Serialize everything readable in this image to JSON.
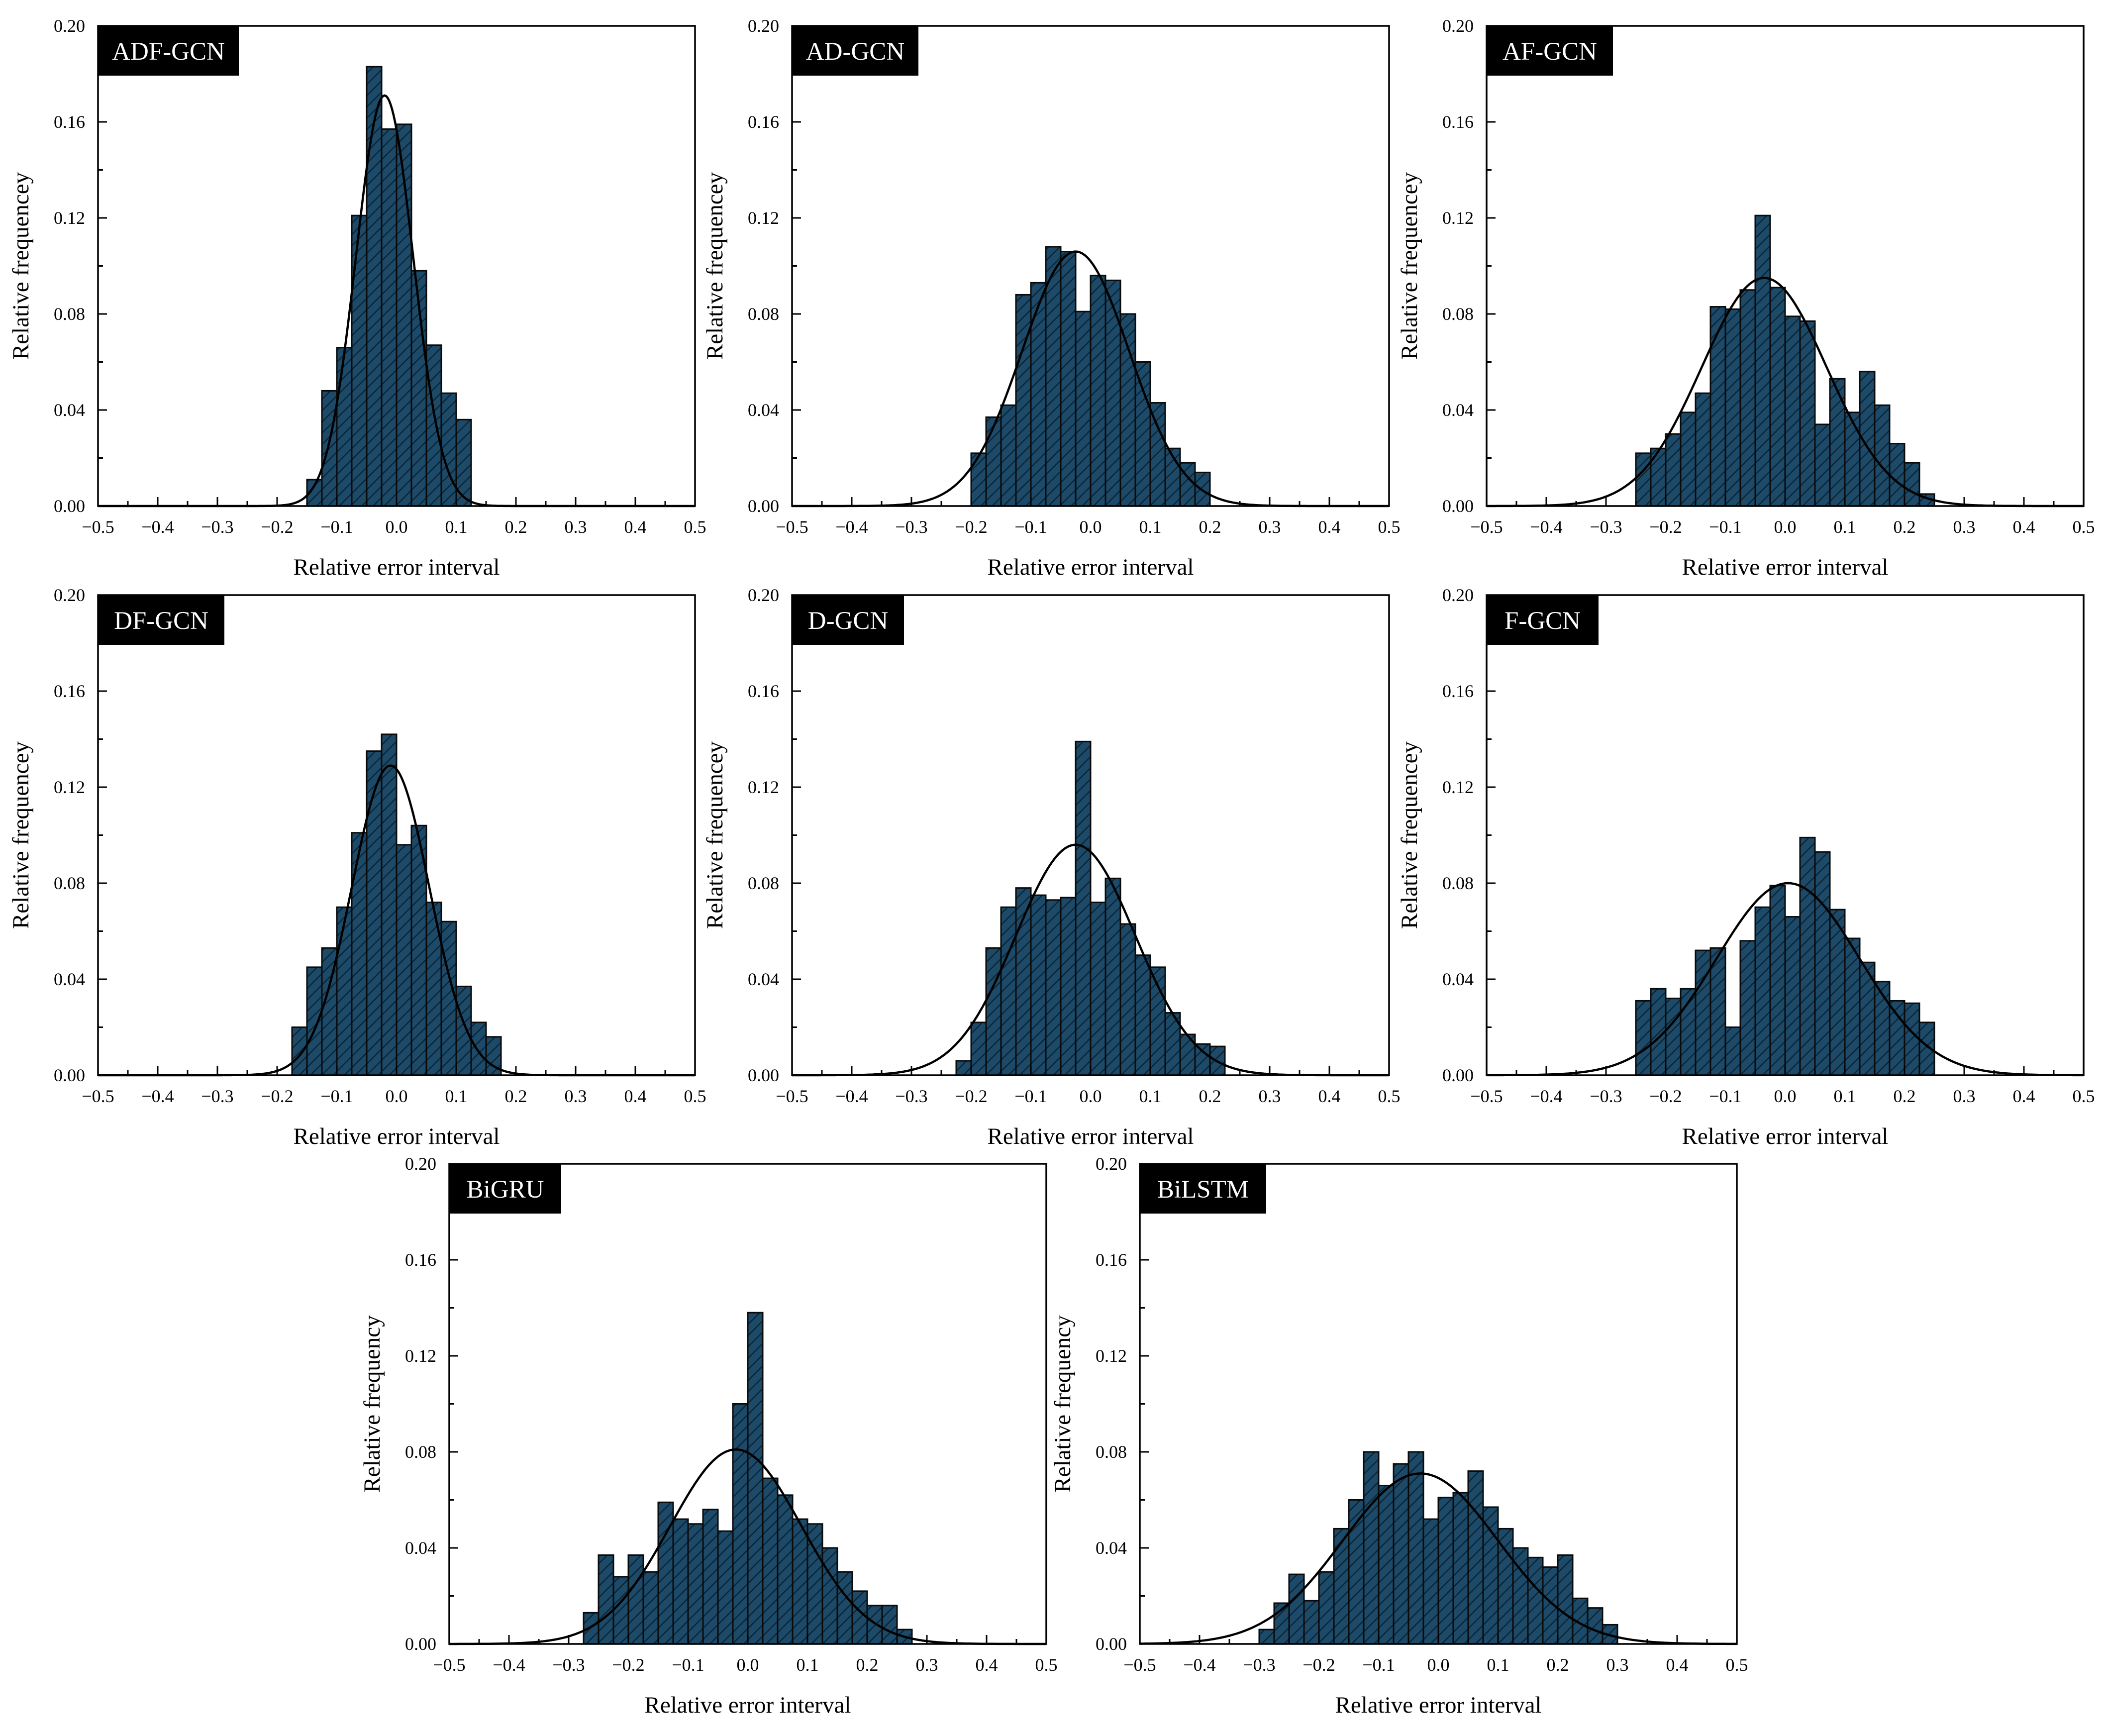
{
  "figure": {
    "bar_color": "#1c4a68",
    "bar_stroke": "#0a0a0a",
    "hatch_color": "#0b2536",
    "curve_color": "#000000",
    "badge_color": "#000000"
  },
  "chart_data": [
    {
      "type": "bar",
      "panel_label": "ADF-GCN",
      "xlabel": "Relative error interval",
      "ylabel": "Relative frequencey",
      "xlim": [
        -0.5,
        0.5
      ],
      "ylim": [
        0,
        0.2
      ],
      "xticks": [
        "−0.5",
        "−0.4",
        "−0.3",
        "−0.2",
        "−0.1",
        "0.0",
        "0.1",
        "0.2",
        "0.3",
        "0.4",
        "0.5"
      ],
      "yticks": [
        "0.00",
        "0.04",
        "0.08",
        "0.12",
        "0.16",
        "0.20"
      ],
      "bin_width": 0.025,
      "bins_start": [
        -0.15,
        -0.125,
        -0.1,
        -0.075,
        -0.05,
        -0.025,
        0.0,
        0.025,
        0.05,
        0.075,
        0.1
      ],
      "values": [
        0.011,
        0.048,
        0.066,
        0.121,
        0.183,
        0.157,
        0.159,
        0.098,
        0.067,
        0.047,
        0.036
      ],
      "fit_curve": {
        "type": "normal",
        "mean": -0.02,
        "std": 0.048,
        "peak": 0.171
      }
    },
    {
      "type": "bar",
      "panel_label": "AD-GCN",
      "xlabel": "Relative error interval",
      "ylabel": "Relative frequencey",
      "xlim": [
        -0.5,
        0.5
      ],
      "ylim": [
        0,
        0.2
      ],
      "xticks": [
        "−0.5",
        "−0.4",
        "−0.3",
        "−0.2",
        "−0.1",
        "0.0",
        "0.1",
        "0.2",
        "0.3",
        "0.4",
        "0.5"
      ],
      "yticks": [
        "0.00",
        "0.04",
        "0.08",
        "0.12",
        "0.16",
        "0.20"
      ],
      "bin_width": 0.025,
      "bins_start": [
        -0.2,
        -0.175,
        -0.15,
        -0.125,
        -0.1,
        -0.075,
        -0.05,
        -0.025,
        0.0,
        0.025,
        0.05,
        0.075,
        0.1,
        0.125,
        0.15,
        0.175
      ],
      "values": [
        0.022,
        0.037,
        0.042,
        0.088,
        0.093,
        0.108,
        0.106,
        0.081,
        0.096,
        0.094,
        0.08,
        0.06,
        0.043,
        0.024,
        0.018,
        0.014
      ],
      "fit_curve": {
        "type": "normal",
        "mean": -0.025,
        "std": 0.09,
        "peak": 0.106
      }
    },
    {
      "type": "bar",
      "panel_label": "AF-GCN",
      "xlabel": "Relative error interval",
      "ylabel": "Relative frequencey",
      "xlim": [
        -0.5,
        0.5
      ],
      "ylim": [
        0,
        0.2
      ],
      "xticks": [
        "−0.5",
        "−0.4",
        "−0.3",
        "−0.2",
        "−0.1",
        "0.0",
        "0.1",
        "0.2",
        "0.3",
        "0.4",
        "0.5"
      ],
      "yticks": [
        "0.00",
        "0.04",
        "0.08",
        "0.12",
        "0.16",
        "0.20"
      ],
      "bin_width": 0.025,
      "bins_start": [
        -0.25,
        -0.225,
        -0.2,
        -0.175,
        -0.15,
        -0.125,
        -0.1,
        -0.075,
        -0.05,
        -0.025,
        0.0,
        0.025,
        0.05,
        0.075,
        0.1,
        0.125,
        0.15,
        0.175,
        0.2,
        0.225
      ],
      "values": [
        0.022,
        0.024,
        0.03,
        0.039,
        0.047,
        0.083,
        0.082,
        0.09,
        0.121,
        0.091,
        0.079,
        0.077,
        0.034,
        0.053,
        0.039,
        0.056,
        0.042,
        0.026,
        0.018,
        0.005
      ],
      "fit_curve": {
        "type": "normal",
        "mean": -0.035,
        "std": 0.105,
        "peak": 0.095
      }
    },
    {
      "type": "bar",
      "panel_label": "DF-GCN",
      "xlabel": "Relative error interval",
      "ylabel": "Relative frequencey",
      "xlim": [
        -0.5,
        0.5
      ],
      "ylim": [
        0,
        0.2
      ],
      "xticks": [
        "−0.5",
        "−0.4",
        "−0.3",
        "−0.2",
        "−0.1",
        "0.0",
        "0.1",
        "0.2",
        "0.3",
        "0.4",
        "0.5"
      ],
      "yticks": [
        "0.00",
        "0.04",
        "0.08",
        "0.12",
        "0.16",
        "0.20"
      ],
      "bin_width": 0.025,
      "bins_start": [
        -0.175,
        -0.15,
        -0.125,
        -0.1,
        -0.075,
        -0.05,
        -0.025,
        0.0,
        0.025,
        0.05,
        0.075,
        0.1,
        0.125,
        0.15
      ],
      "values": [
        0.02,
        0.045,
        0.053,
        0.07,
        0.101,
        0.135,
        0.142,
        0.096,
        0.104,
        0.072,
        0.064,
        0.037,
        0.022,
        0.016
      ],
      "fit_curve": {
        "type": "normal",
        "mean": -0.01,
        "std": 0.065,
        "peak": 0.129
      }
    },
    {
      "type": "bar",
      "panel_label": "D-GCN",
      "xlabel": "Relative error interval",
      "ylabel": "Relative frequencey",
      "xlim": [
        -0.5,
        0.5
      ],
      "ylim": [
        0,
        0.2
      ],
      "xticks": [
        "−0.5",
        "−0.4",
        "−0.3",
        "−0.2",
        "−0.1",
        "0.0",
        "0.1",
        "0.2",
        "0.3",
        "0.4",
        "0.5"
      ],
      "yticks": [
        "0.00",
        "0.04",
        "0.08",
        "0.12",
        "0.16",
        "0.20"
      ],
      "bin_width": 0.025,
      "bins_start": [
        -0.225,
        -0.2,
        -0.175,
        -0.15,
        -0.125,
        -0.1,
        -0.075,
        -0.05,
        -0.025,
        0.0,
        0.025,
        0.05,
        0.075,
        0.1,
        0.125,
        0.15,
        0.175,
        0.2
      ],
      "values": [
        0.006,
        0.022,
        0.053,
        0.07,
        0.078,
        0.075,
        0.073,
        0.074,
        0.139,
        0.072,
        0.082,
        0.063,
        0.05,
        0.045,
        0.026,
        0.017,
        0.013,
        0.012
      ],
      "fit_curve": {
        "type": "normal",
        "mean": -0.025,
        "std": 0.1,
        "peak": 0.096
      }
    },
    {
      "type": "bar",
      "panel_label": "F-GCN",
      "xlabel": "Relative error interval",
      "ylabel": "Relative frequencey",
      "xlim": [
        -0.5,
        0.5
      ],
      "ylim": [
        0,
        0.2
      ],
      "xticks": [
        "−0.5",
        "−0.4",
        "−0.3",
        "−0.2",
        "−0.1",
        "0.0",
        "0.1",
        "0.2",
        "0.3",
        "0.4",
        "0.5"
      ],
      "yticks": [
        "0.00",
        "0.04",
        "0.08",
        "0.12",
        "0.16",
        "0.20"
      ],
      "bin_width": 0.025,
      "bins_start": [
        -0.25,
        -0.225,
        -0.2,
        -0.175,
        -0.15,
        -0.125,
        -0.1,
        -0.075,
        -0.05,
        -0.025,
        0.0,
        0.025,
        0.05,
        0.075,
        0.1,
        0.125,
        0.15,
        0.175,
        0.2,
        0.225
      ],
      "values": [
        0.031,
        0.036,
        0.032,
        0.036,
        0.052,
        0.053,
        0.02,
        0.056,
        0.07,
        0.079,
        0.066,
        0.099,
        0.093,
        0.069,
        0.057,
        0.047,
        0.039,
        0.031,
        0.03,
        0.022
      ],
      "fit_curve": {
        "type": "normal",
        "mean": 0.005,
        "std": 0.12,
        "peak": 0.08
      }
    },
    {
      "type": "bar",
      "panel_label": "BiGRU",
      "xlabel": "Relative error interval",
      "ylabel": "Relative frequency",
      "xlim": [
        -0.5,
        0.5
      ],
      "ylim": [
        0,
        0.2
      ],
      "xticks": [
        "−0.5",
        "−0.4",
        "−0.3",
        "−0.2",
        "−0.1",
        "0.0",
        "0.1",
        "0.2",
        "0.3",
        "0.4",
        "0.5"
      ],
      "yticks": [
        "0.00",
        "0.04",
        "0.08",
        "0.12",
        "0.16",
        "0.20"
      ],
      "bin_width": 0.025,
      "bins_start": [
        -0.275,
        -0.25,
        -0.225,
        -0.2,
        -0.175,
        -0.15,
        -0.125,
        -0.1,
        -0.075,
        -0.05,
        -0.025,
        0.0,
        0.025,
        0.05,
        0.075,
        0.1,
        0.125,
        0.15,
        0.175,
        0.2,
        0.225,
        0.25
      ],
      "values": [
        0.013,
        0.037,
        0.028,
        0.037,
        0.03,
        0.059,
        0.052,
        0.05,
        0.056,
        0.047,
        0.1,
        0.138,
        0.069,
        0.062,
        0.052,
        0.05,
        0.04,
        0.03,
        0.022,
        0.016,
        0.016,
        0.006
      ],
      "fit_curve": {
        "type": "normal",
        "mean": -0.02,
        "std": 0.11,
        "peak": 0.081
      }
    },
    {
      "type": "bar",
      "panel_label": "BiLSTM",
      "xlabel": "Relative error interval",
      "ylabel": "Relative frequency",
      "xlim": [
        -0.5,
        0.5
      ],
      "ylim": [
        0,
        0.2
      ],
      "xticks": [
        "−0.5",
        "−0.4",
        "−0.3",
        "−0.2",
        "−0.1",
        "0.0",
        "0.1",
        "0.2",
        "0.3",
        "0.4",
        "0.5"
      ],
      "yticks": [
        "0.00",
        "0.04",
        "0.08",
        "0.12",
        "0.16",
        "0.20"
      ],
      "bin_width": 0.025,
      "bins_start": [
        -0.3,
        -0.275,
        -0.25,
        -0.225,
        -0.2,
        -0.175,
        -0.15,
        -0.125,
        -0.1,
        -0.075,
        -0.05,
        -0.025,
        0.0,
        0.025,
        0.05,
        0.075,
        0.1,
        0.125,
        0.15,
        0.175,
        0.2,
        0.225,
        0.25,
        0.275
      ],
      "values": [
        0.006,
        0.017,
        0.029,
        0.018,
        0.03,
        0.048,
        0.06,
        0.08,
        0.066,
        0.075,
        0.08,
        0.052,
        0.061,
        0.063,
        0.072,
        0.057,
        0.048,
        0.04,
        0.036,
        0.032,
        0.037,
        0.019,
        0.015,
        0.008
      ],
      "fit_curve": {
        "type": "normal",
        "mean": -0.03,
        "std": 0.13,
        "peak": 0.071
      }
    }
  ]
}
